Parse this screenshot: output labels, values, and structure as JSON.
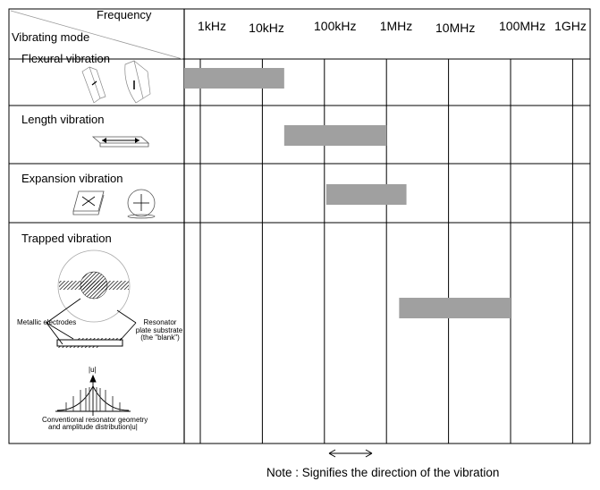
{
  "header": {
    "frequency_label": "Frequency",
    "mode_label": "Vibrating mode"
  },
  "frequency_ticks": [
    "1kHz",
    "10kHz",
    "100kHz",
    "1MHz",
    "10MHz",
    "100MHz",
    "1GHz"
  ],
  "modes": [
    {
      "label": "Flexural vibration",
      "range_hz": [
        550,
        22500
      ]
    },
    {
      "label": "Length vibration",
      "range_hz": [
        22500,
        1000000
      ]
    },
    {
      "label": "Expansion vibration",
      "range_hz": [
        107000,
        2100000
      ]
    },
    {
      "label": "Trapped vibration",
      "range_hz": [
        1600000,
        100000000
      ]
    }
  ],
  "trapped_annotations": {
    "electrodes": "Metallic electrodes",
    "substrate_1": "Resonator",
    "substrate_2": "plate substrate",
    "substrate_3": "(the \"blank\")",
    "amplitude_axis": "|u|",
    "caption_1": "Conventional resonator geometry",
    "caption_2": "and amplitude distribution|u|"
  },
  "note": "Note : Signifies the direction of the vibration",
  "colors": {
    "bar": "#a0a0a0",
    "grid": "#000000"
  }
}
